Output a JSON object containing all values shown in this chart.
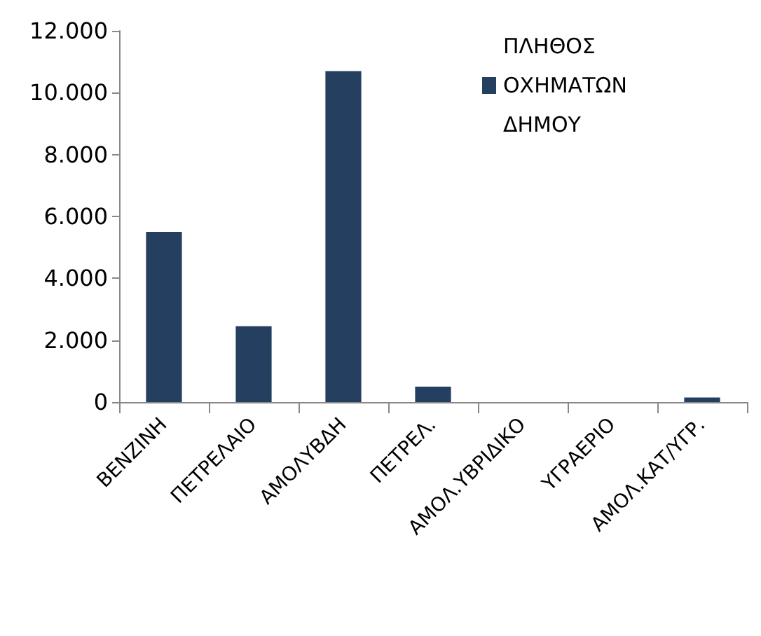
{
  "chart_data": {
    "type": "bar",
    "categories": [
      "ΒΕΝΖΙΝΗ",
      "ΠΕΤΡΕΛΑΙΟ",
      "ΑΜΟΛΥΒΔΗ",
      "ΠΕΤΡΕΛ.",
      "ΑΜΟΛ.ΥΒΡΙΔΙΚΟ",
      "ΥΓΡΑΕΡΙΟ",
      "ΑΜΟΛ.ΚΑΤ/ΥΓΡ."
    ],
    "series": [
      {
        "name": "ΠΛΗΘΟΣ ΟΧΗΜΑΤΩΝ ΔΗΜΟΥ",
        "color": "#243f60",
        "values": [
          5500,
          2450,
          10700,
          500,
          0,
          0,
          150
        ]
      }
    ],
    "ylim": [
      0,
      12000
    ],
    "yticks": [
      {
        "value": 0,
        "label": "0"
      },
      {
        "value": 2000,
        "label": "2.000"
      },
      {
        "value": 4000,
        "label": "4.000"
      },
      {
        "value": 6000,
        "label": "6.000"
      },
      {
        "value": 8000,
        "label": "8.000"
      },
      {
        "value": 10000,
        "label": "10.000"
      },
      {
        "value": 12000,
        "label": "12.000"
      }
    ],
    "grid": false,
    "legend": "top right"
  }
}
